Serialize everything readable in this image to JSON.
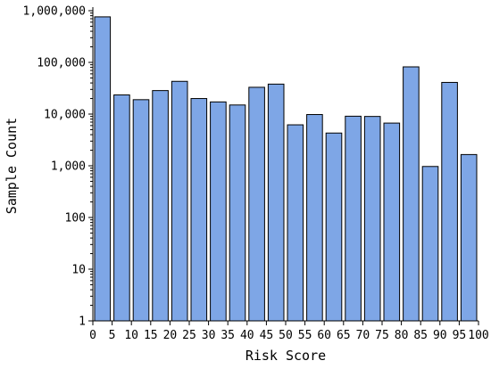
{
  "chart_data": {
    "type": "bar",
    "title": "",
    "xlabel": "Risk Score",
    "ylabel": "Sample Count",
    "y_scale": "log",
    "ylim": [
      1,
      1000000
    ],
    "xlim": [
      0,
      100
    ],
    "grid": false,
    "legend": "none",
    "bar_color": "#7ea6e6",
    "x_ticks": [
      "0",
      "5",
      "10",
      "15",
      "20",
      "25",
      "30",
      "35",
      "40",
      "45",
      "50",
      "55",
      "60",
      "65",
      "70",
      "75",
      "80",
      "85",
      "90",
      "95",
      "100"
    ],
    "y_ticks": [
      {
        "value": 1,
        "label": "1"
      },
      {
        "value": 10,
        "label": "10"
      },
      {
        "value": 100,
        "label": "100"
      },
      {
        "value": 1000,
        "label": "1,000"
      },
      {
        "value": 10000,
        "label": "10,000"
      },
      {
        "value": 100000,
        "label": "100,000"
      },
      {
        "value": 1000000,
        "label": "1,000,000"
      }
    ],
    "bins": [
      {
        "x": 2.5,
        "value": 760000
      },
      {
        "x": 7.5,
        "value": 23500
      },
      {
        "x": 12.5,
        "value": 19000
      },
      {
        "x": 17.5,
        "value": 28500
      },
      {
        "x": 22.5,
        "value": 43000
      },
      {
        "x": 27.5,
        "value": 20000
      },
      {
        "x": 32.5,
        "value": 17200
      },
      {
        "x": 37.5,
        "value": 15000
      },
      {
        "x": 42.5,
        "value": 33000
      },
      {
        "x": 47.5,
        "value": 38000
      },
      {
        "x": 52.5,
        "value": 6200
      },
      {
        "x": 57.5,
        "value": 9800
      },
      {
        "x": 62.5,
        "value": 4300
      },
      {
        "x": 67.5,
        "value": 9100
      },
      {
        "x": 72.5,
        "value": 9000
      },
      {
        "x": 77.5,
        "value": 6700
      },
      {
        "x": 82.5,
        "value": 82000
      },
      {
        "x": 87.5,
        "value": 970
      },
      {
        "x": 92.5,
        "value": 41000
      },
      {
        "x": 97.5,
        "value": 1650
      }
    ]
  }
}
